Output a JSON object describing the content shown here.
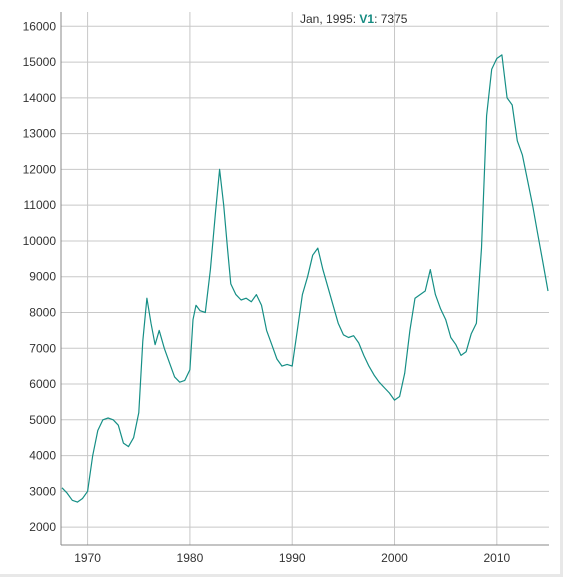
{
  "legend": {
    "date": "Jan, 1995",
    "series_name": "V1",
    "value": "7375"
  },
  "colors": {
    "series": "#168f86",
    "grid": "#c8c8c8",
    "axis": "#888888",
    "text": "#333333"
  },
  "chart_data": {
    "type": "line",
    "title": "",
    "xlabel": "",
    "ylabel": "",
    "xlim": [
      1967.4,
      2015.1
    ],
    "ylim": [
      1500,
      16400
    ],
    "x_ticks": [
      1970,
      1980,
      1990,
      2000,
      2010
    ],
    "y_ticks": [
      2000,
      3000,
      4000,
      5000,
      6000,
      7000,
      8000,
      9000,
      10000,
      11000,
      12000,
      13000,
      14000,
      15000,
      16000
    ],
    "grid": true,
    "legend_placement": "top",
    "series": [
      {
        "name": "V1",
        "points": [
          [
            1967.5,
            3100
          ],
          [
            1968.0,
            2950
          ],
          [
            1968.5,
            2750
          ],
          [
            1969.0,
            2700
          ],
          [
            1969.5,
            2800
          ],
          [
            1970.0,
            3000
          ],
          [
            1970.5,
            4000
          ],
          [
            1971.0,
            4700
          ],
          [
            1971.5,
            5000
          ],
          [
            1972.0,
            5050
          ],
          [
            1972.5,
            5000
          ],
          [
            1973.0,
            4850
          ],
          [
            1973.5,
            4350
          ],
          [
            1974.0,
            4250
          ],
          [
            1974.5,
            4500
          ],
          [
            1975.0,
            5200
          ],
          [
            1975.4,
            7200
          ],
          [
            1975.8,
            8400
          ],
          [
            1976.2,
            7700
          ],
          [
            1976.6,
            7100
          ],
          [
            1977.0,
            7500
          ],
          [
            1977.5,
            7000
          ],
          [
            1978.0,
            6600
          ],
          [
            1978.5,
            6200
          ],
          [
            1979.0,
            6050
          ],
          [
            1979.5,
            6100
          ],
          [
            1980.0,
            6400
          ],
          [
            1980.3,
            7800
          ],
          [
            1980.6,
            8200
          ],
          [
            1981.0,
            8050
          ],
          [
            1981.5,
            8000
          ],
          [
            1982.0,
            9200
          ],
          [
            1982.5,
            10800
          ],
          [
            1982.9,
            12000
          ],
          [
            1983.3,
            11000
          ],
          [
            1983.7,
            9700
          ],
          [
            1984.0,
            8800
          ],
          [
            1984.5,
            8500
          ],
          [
            1985.0,
            8350
          ],
          [
            1985.5,
            8400
          ],
          [
            1986.0,
            8300
          ],
          [
            1986.5,
            8500
          ],
          [
            1987.0,
            8200
          ],
          [
            1987.5,
            7500
          ],
          [
            1988.0,
            7100
          ],
          [
            1988.5,
            6700
          ],
          [
            1989.0,
            6500
          ],
          [
            1989.5,
            6550
          ],
          [
            1990.0,
            6500
          ],
          [
            1990.5,
            7500
          ],
          [
            1991.0,
            8500
          ],
          [
            1991.5,
            9000
          ],
          [
            1992.0,
            9600
          ],
          [
            1992.5,
            9800
          ],
          [
            1993.0,
            9200
          ],
          [
            1993.5,
            8700
          ],
          [
            1994.0,
            8200
          ],
          [
            1994.5,
            7700
          ],
          [
            1995.0,
            7375
          ],
          [
            1995.5,
            7300
          ],
          [
            1996.0,
            7350
          ],
          [
            1996.5,
            7150
          ],
          [
            1997.0,
            6800
          ],
          [
            1997.5,
            6500
          ],
          [
            1998.0,
            6250
          ],
          [
            1998.5,
            6050
          ],
          [
            1999.0,
            5900
          ],
          [
            1999.5,
            5750
          ],
          [
            2000.0,
            5550
          ],
          [
            2000.5,
            5650
          ],
          [
            2001.0,
            6300
          ],
          [
            2001.5,
            7500
          ],
          [
            2002.0,
            8400
          ],
          [
            2002.5,
            8500
          ],
          [
            2003.0,
            8600
          ],
          [
            2003.5,
            9200
          ],
          [
            2004.0,
            8500
          ],
          [
            2004.5,
            8100
          ],
          [
            2005.0,
            7800
          ],
          [
            2005.5,
            7300
          ],
          [
            2006.0,
            7100
          ],
          [
            2006.5,
            6800
          ],
          [
            2007.0,
            6900
          ],
          [
            2007.5,
            7400
          ],
          [
            2008.0,
            7700
          ],
          [
            2008.5,
            9800
          ],
          [
            2009.0,
            13500
          ],
          [
            2009.5,
            14800
          ],
          [
            2010.0,
            15100
          ],
          [
            2010.5,
            15200
          ],
          [
            2011.0,
            14000
          ],
          [
            2011.5,
            13800
          ],
          [
            2012.0,
            12800
          ],
          [
            2012.5,
            12400
          ],
          [
            2013.0,
            11700
          ],
          [
            2013.5,
            11000
          ],
          [
            2014.0,
            10200
          ],
          [
            2014.5,
            9400
          ],
          [
            2015.0,
            8600
          ]
        ]
      }
    ]
  }
}
